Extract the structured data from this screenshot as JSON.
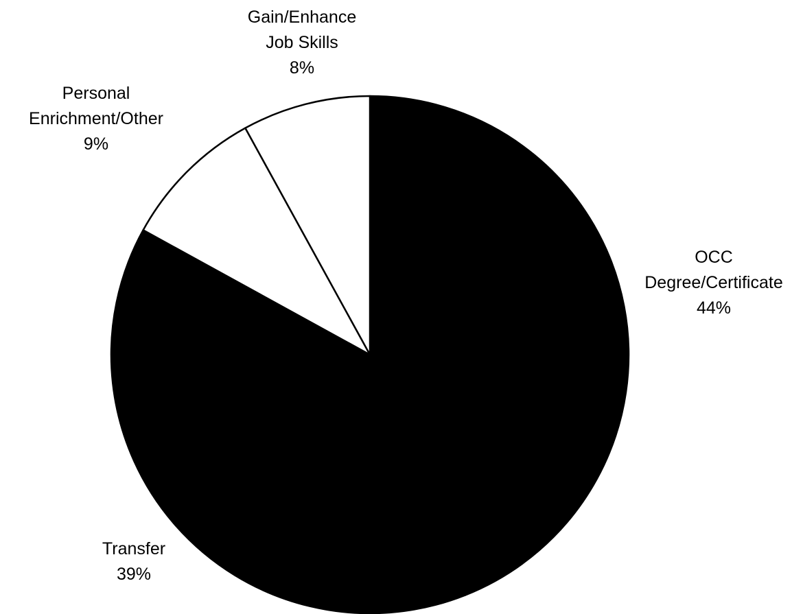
{
  "chart_data": {
    "type": "pie",
    "categories": [
      "OCC\nDegree/Certificate",
      "Transfer",
      "Personal\nEnrichment/Other",
      "Gain/Enhance\nJob Skills"
    ],
    "values": [
      44,
      39,
      9,
      8
    ],
    "value_labels": [
      "44%",
      "39%",
      "9%",
      "8%"
    ],
    "colors": [
      "#000000",
      "#000000",
      "#ffffff",
      "#ffffff"
    ]
  }
}
